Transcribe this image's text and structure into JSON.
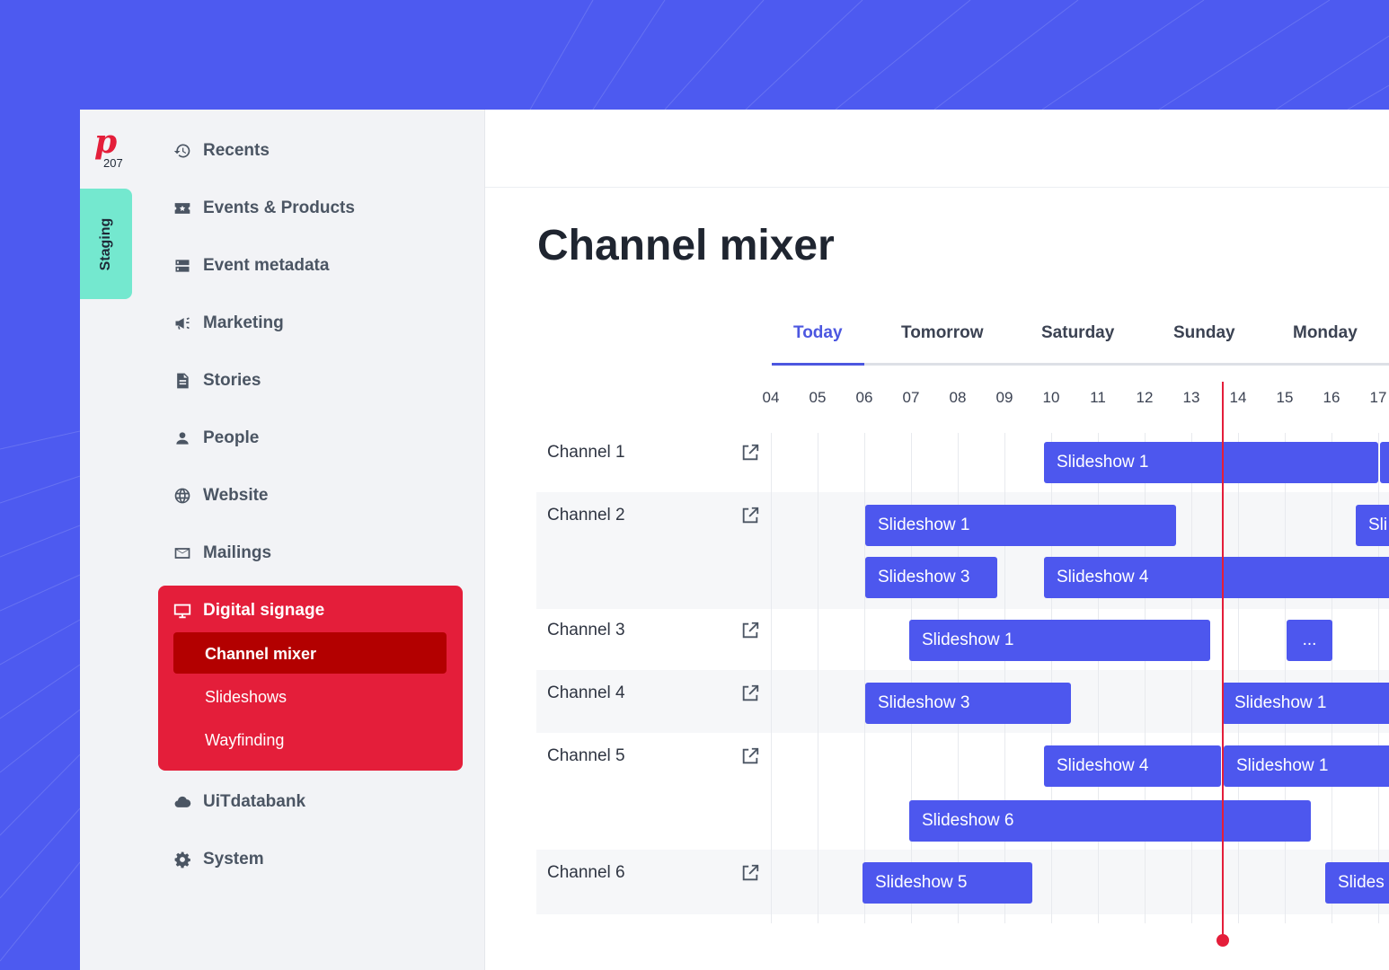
{
  "brand": {
    "logo_letter": "p",
    "logo_number": "207",
    "environment": "Staging"
  },
  "sidebar": {
    "items_top": [
      {
        "label": "Recents",
        "icon": "history-icon"
      },
      {
        "label": "Events & Products",
        "icon": "ticket-star-icon"
      },
      {
        "label": "Event metadata",
        "icon": "database-icon"
      },
      {
        "label": "Marketing",
        "icon": "megaphone-icon"
      },
      {
        "label": "Stories",
        "icon": "document-icon"
      },
      {
        "label": "People",
        "icon": "person-icon"
      },
      {
        "label": "Website",
        "icon": "globe-icon"
      },
      {
        "label": "Mailings",
        "icon": "envelope-icon"
      }
    ],
    "digital_signage": {
      "label": "Digital signage",
      "icon": "monitor-icon",
      "subitems": [
        "Channel mixer",
        "Slideshows",
        "Wayfinding"
      ],
      "active_subitem": "Channel mixer"
    },
    "items_bottom": [
      {
        "label": "UiTdatabank",
        "icon": "cloud-icon"
      },
      {
        "label": "System",
        "icon": "gear-icon"
      }
    ]
  },
  "main": {
    "title": "Channel mixer",
    "day_tabs": [
      "Today",
      "Tomorrow",
      "Saturday",
      "Sunday",
      "Monday"
    ],
    "active_tab": "Today",
    "hours": [
      "04",
      "05",
      "06",
      "07",
      "08",
      "09",
      "10",
      "11",
      "12",
      "13",
      "14",
      "15",
      "16",
      "17"
    ],
    "channels": [
      {
        "name": "Channel 1",
        "slots": [
          {
            "label": "Slideshow 1"
          },
          {
            "label": ""
          }
        ]
      },
      {
        "name": "Channel 2",
        "slots": [
          {
            "label": "Slideshow 1"
          },
          {
            "label": "Sli"
          },
          {
            "label": "Slideshow 3"
          },
          {
            "label": "Slideshow 4"
          }
        ]
      },
      {
        "name": "Channel 3",
        "slots": [
          {
            "label": "Slideshow 1"
          },
          {
            "label": "..."
          }
        ]
      },
      {
        "name": "Channel 4",
        "slots": [
          {
            "label": "Slideshow 3"
          },
          {
            "label": "Slideshow 1"
          }
        ]
      },
      {
        "name": "Channel 5",
        "slots": [
          {
            "label": "Slideshow 4"
          },
          {
            "label": "Slideshow 1"
          },
          {
            "label": "Slideshow 6"
          }
        ]
      },
      {
        "name": "Channel 6",
        "slots": [
          {
            "label": "Slideshow 5"
          },
          {
            "label": "Slides"
          }
        ]
      }
    ]
  },
  "colors": {
    "background": "#4d5af0",
    "accent": "#4c57e0",
    "slot": "#4d57ee",
    "signage_red": "#e41e3a",
    "signage_active": "#b30000",
    "environment_tag": "#74e8cf",
    "now_line": "#e41e3a"
  }
}
